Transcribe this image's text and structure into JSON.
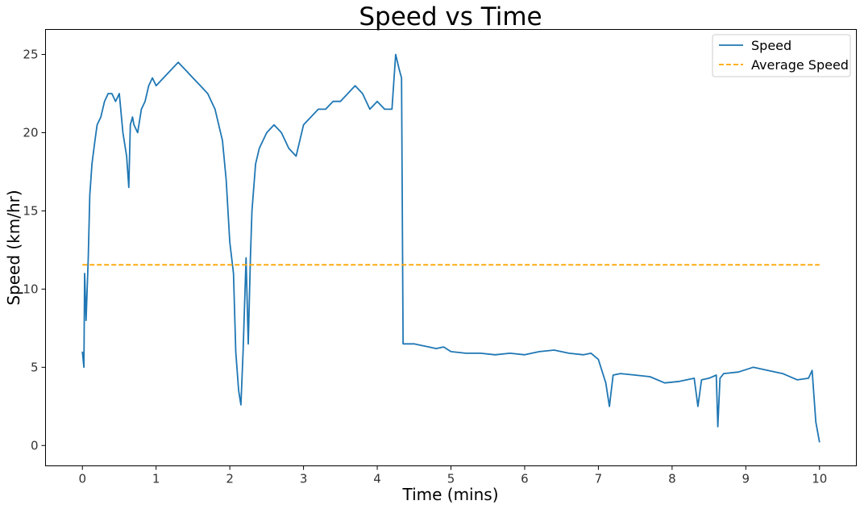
{
  "chart_data": {
    "type": "line",
    "title": "Speed vs Time",
    "xlabel": "Time (mins)",
    "ylabel": "Speed (km/hr)",
    "xlim": [
      -0.5,
      10.5
    ],
    "ylim": [
      -1.3,
      26.6
    ],
    "xticks": [
      0,
      1,
      2,
      3,
      4,
      5,
      6,
      7,
      8,
      9,
      10
    ],
    "yticks": [
      0,
      5,
      10,
      15,
      20,
      25
    ],
    "grid": false,
    "legend_position": "top-right",
    "series": [
      {
        "name": "Speed",
        "color": "#1f77b4",
        "style": "solid",
        "x": [
          0,
          0.02,
          0.03,
          0.05,
          0.08,
          0.1,
          0.13,
          0.17,
          0.2,
          0.25,
          0.3,
          0.35,
          0.4,
          0.45,
          0.5,
          0.55,
          0.6,
          0.63,
          0.65,
          0.68,
          0.7,
          0.75,
          0.8,
          0.85,
          0.9,
          0.95,
          1.0,
          1.1,
          1.2,
          1.3,
          1.4,
          1.5,
          1.6,
          1.7,
          1.8,
          1.9,
          1.95,
          2.0,
          2.05,
          2.08,
          2.12,
          2.15,
          2.18,
          2.22,
          2.25,
          2.28,
          2.3,
          2.35,
          2.4,
          2.5,
          2.6,
          2.7,
          2.8,
          2.9,
          3.0,
          3.1,
          3.2,
          3.3,
          3.4,
          3.5,
          3.6,
          3.7,
          3.8,
          3.9,
          4.0,
          4.1,
          4.2,
          4.25,
          4.3,
          4.33,
          4.35,
          4.4,
          4.5,
          4.6,
          4.7,
          4.8,
          4.9,
          5.0,
          5.2,
          5.4,
          5.6,
          5.8,
          6.0,
          6.2,
          6.4,
          6.6,
          6.8,
          6.9,
          7.0,
          7.1,
          7.15,
          7.2,
          7.3,
          7.5,
          7.7,
          7.9,
          8.1,
          8.3,
          8.35,
          8.4,
          8.5,
          8.6,
          8.62,
          8.65,
          8.7,
          8.9,
          9.1,
          9.3,
          9.5,
          9.7,
          9.85,
          9.9,
          9.95,
          10.0
        ],
        "values": [
          6.0,
          5.0,
          11.0,
          8.0,
          12.0,
          16.0,
          18.0,
          19.5,
          20.5,
          21.0,
          22.0,
          22.5,
          22.5,
          22.0,
          22.5,
          20.0,
          18.5,
          16.5,
          20.5,
          21.0,
          20.5,
          20.0,
          21.5,
          22.0,
          23.0,
          23.5,
          23.0,
          23.5,
          24.0,
          24.5,
          24.0,
          23.5,
          23.0,
          22.5,
          21.5,
          19.5,
          17.0,
          13.0,
          11.0,
          6.0,
          3.5,
          2.6,
          6.0,
          12.0,
          6.5,
          12.0,
          15.0,
          18.0,
          19.0,
          20.0,
          20.5,
          20.0,
          19.0,
          18.5,
          20.5,
          21.0,
          21.5,
          21.5,
          22.0,
          22.0,
          22.5,
          23.0,
          22.5,
          21.5,
          22.0,
          21.5,
          21.5,
          25.0,
          24.0,
          23.5,
          6.5,
          6.5,
          6.5,
          6.4,
          6.3,
          6.2,
          6.3,
          6.0,
          5.9,
          5.9,
          5.8,
          5.9,
          5.8,
          6.0,
          6.1,
          5.9,
          5.8,
          5.9,
          5.5,
          4.0,
          2.5,
          4.5,
          4.6,
          4.5,
          4.4,
          4.0,
          4.1,
          4.3,
          2.5,
          4.2,
          4.3,
          4.5,
          1.2,
          4.3,
          4.6,
          4.7,
          5.0,
          4.8,
          4.6,
          4.2,
          4.3,
          4.8,
          1.5,
          0.2
        ]
      },
      {
        "name": "Average Speed",
        "color": "orange",
        "style": "dashed",
        "x": [
          0,
          10
        ],
        "values": [
          11.55,
          11.55
        ]
      }
    ]
  }
}
